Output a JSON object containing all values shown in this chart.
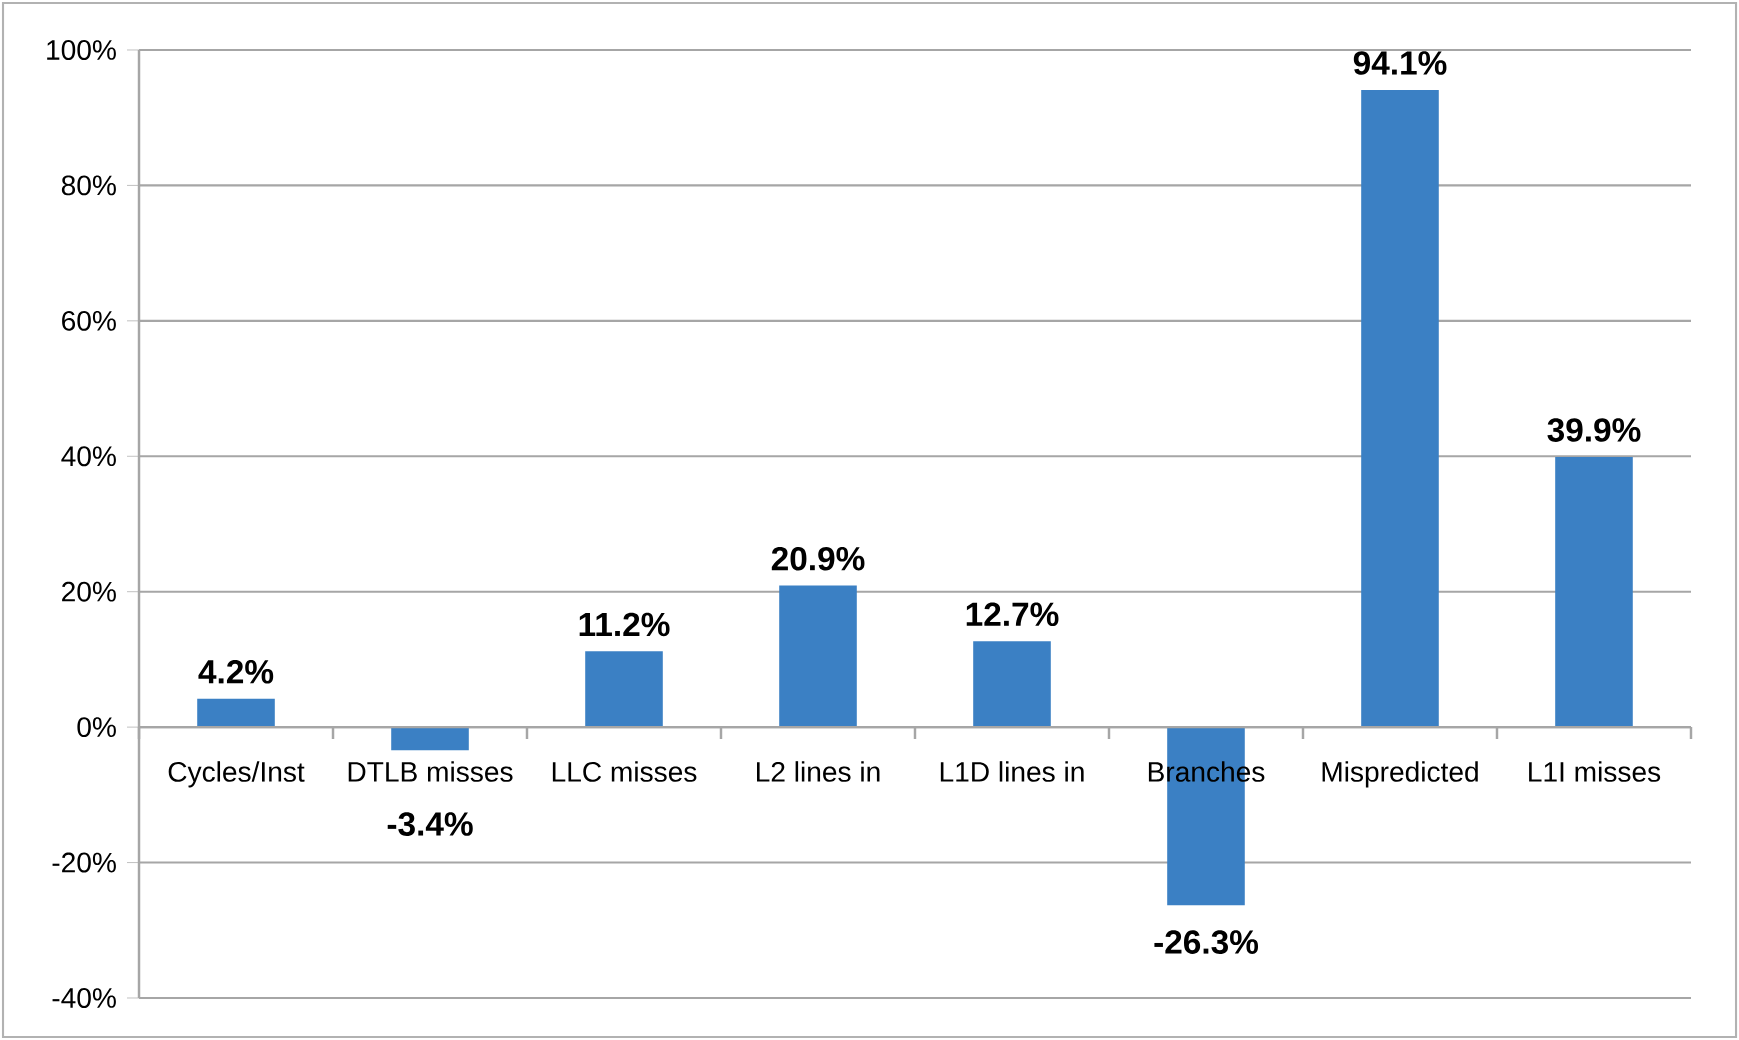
{
  "chart_data": {
    "type": "bar",
    "categories": [
      "Cycles/Inst",
      "DTLB misses",
      "LLC misses",
      "L2 lines in",
      "L1D lines in",
      "Branches",
      "Mispredicted",
      "L1I misses"
    ],
    "values": [
      4.2,
      -3.4,
      11.2,
      20.9,
      12.7,
      -26.3,
      94.1,
      39.9
    ],
    "value_labels": [
      "4.2%",
      "-3.4%",
      "11.2%",
      "20.9%",
      "12.7%",
      "-26.3%",
      "94.1%",
      "39.9%"
    ],
    "color": "#3b80c4",
    "ylim": [
      -40,
      100
    ],
    "yticks": [
      {
        "value": -40,
        "label": "-40%"
      },
      {
        "value": -20,
        "label": "-20%"
      },
      {
        "value": 0,
        "label": "0%"
      },
      {
        "value": 20,
        "label": "20%"
      },
      {
        "value": 40,
        "label": "40%"
      },
      {
        "value": 60,
        "label": "60%"
      },
      {
        "value": 80,
        "label": "80%"
      },
      {
        "value": 100,
        "label": "100%"
      }
    ],
    "grid": "y"
  }
}
